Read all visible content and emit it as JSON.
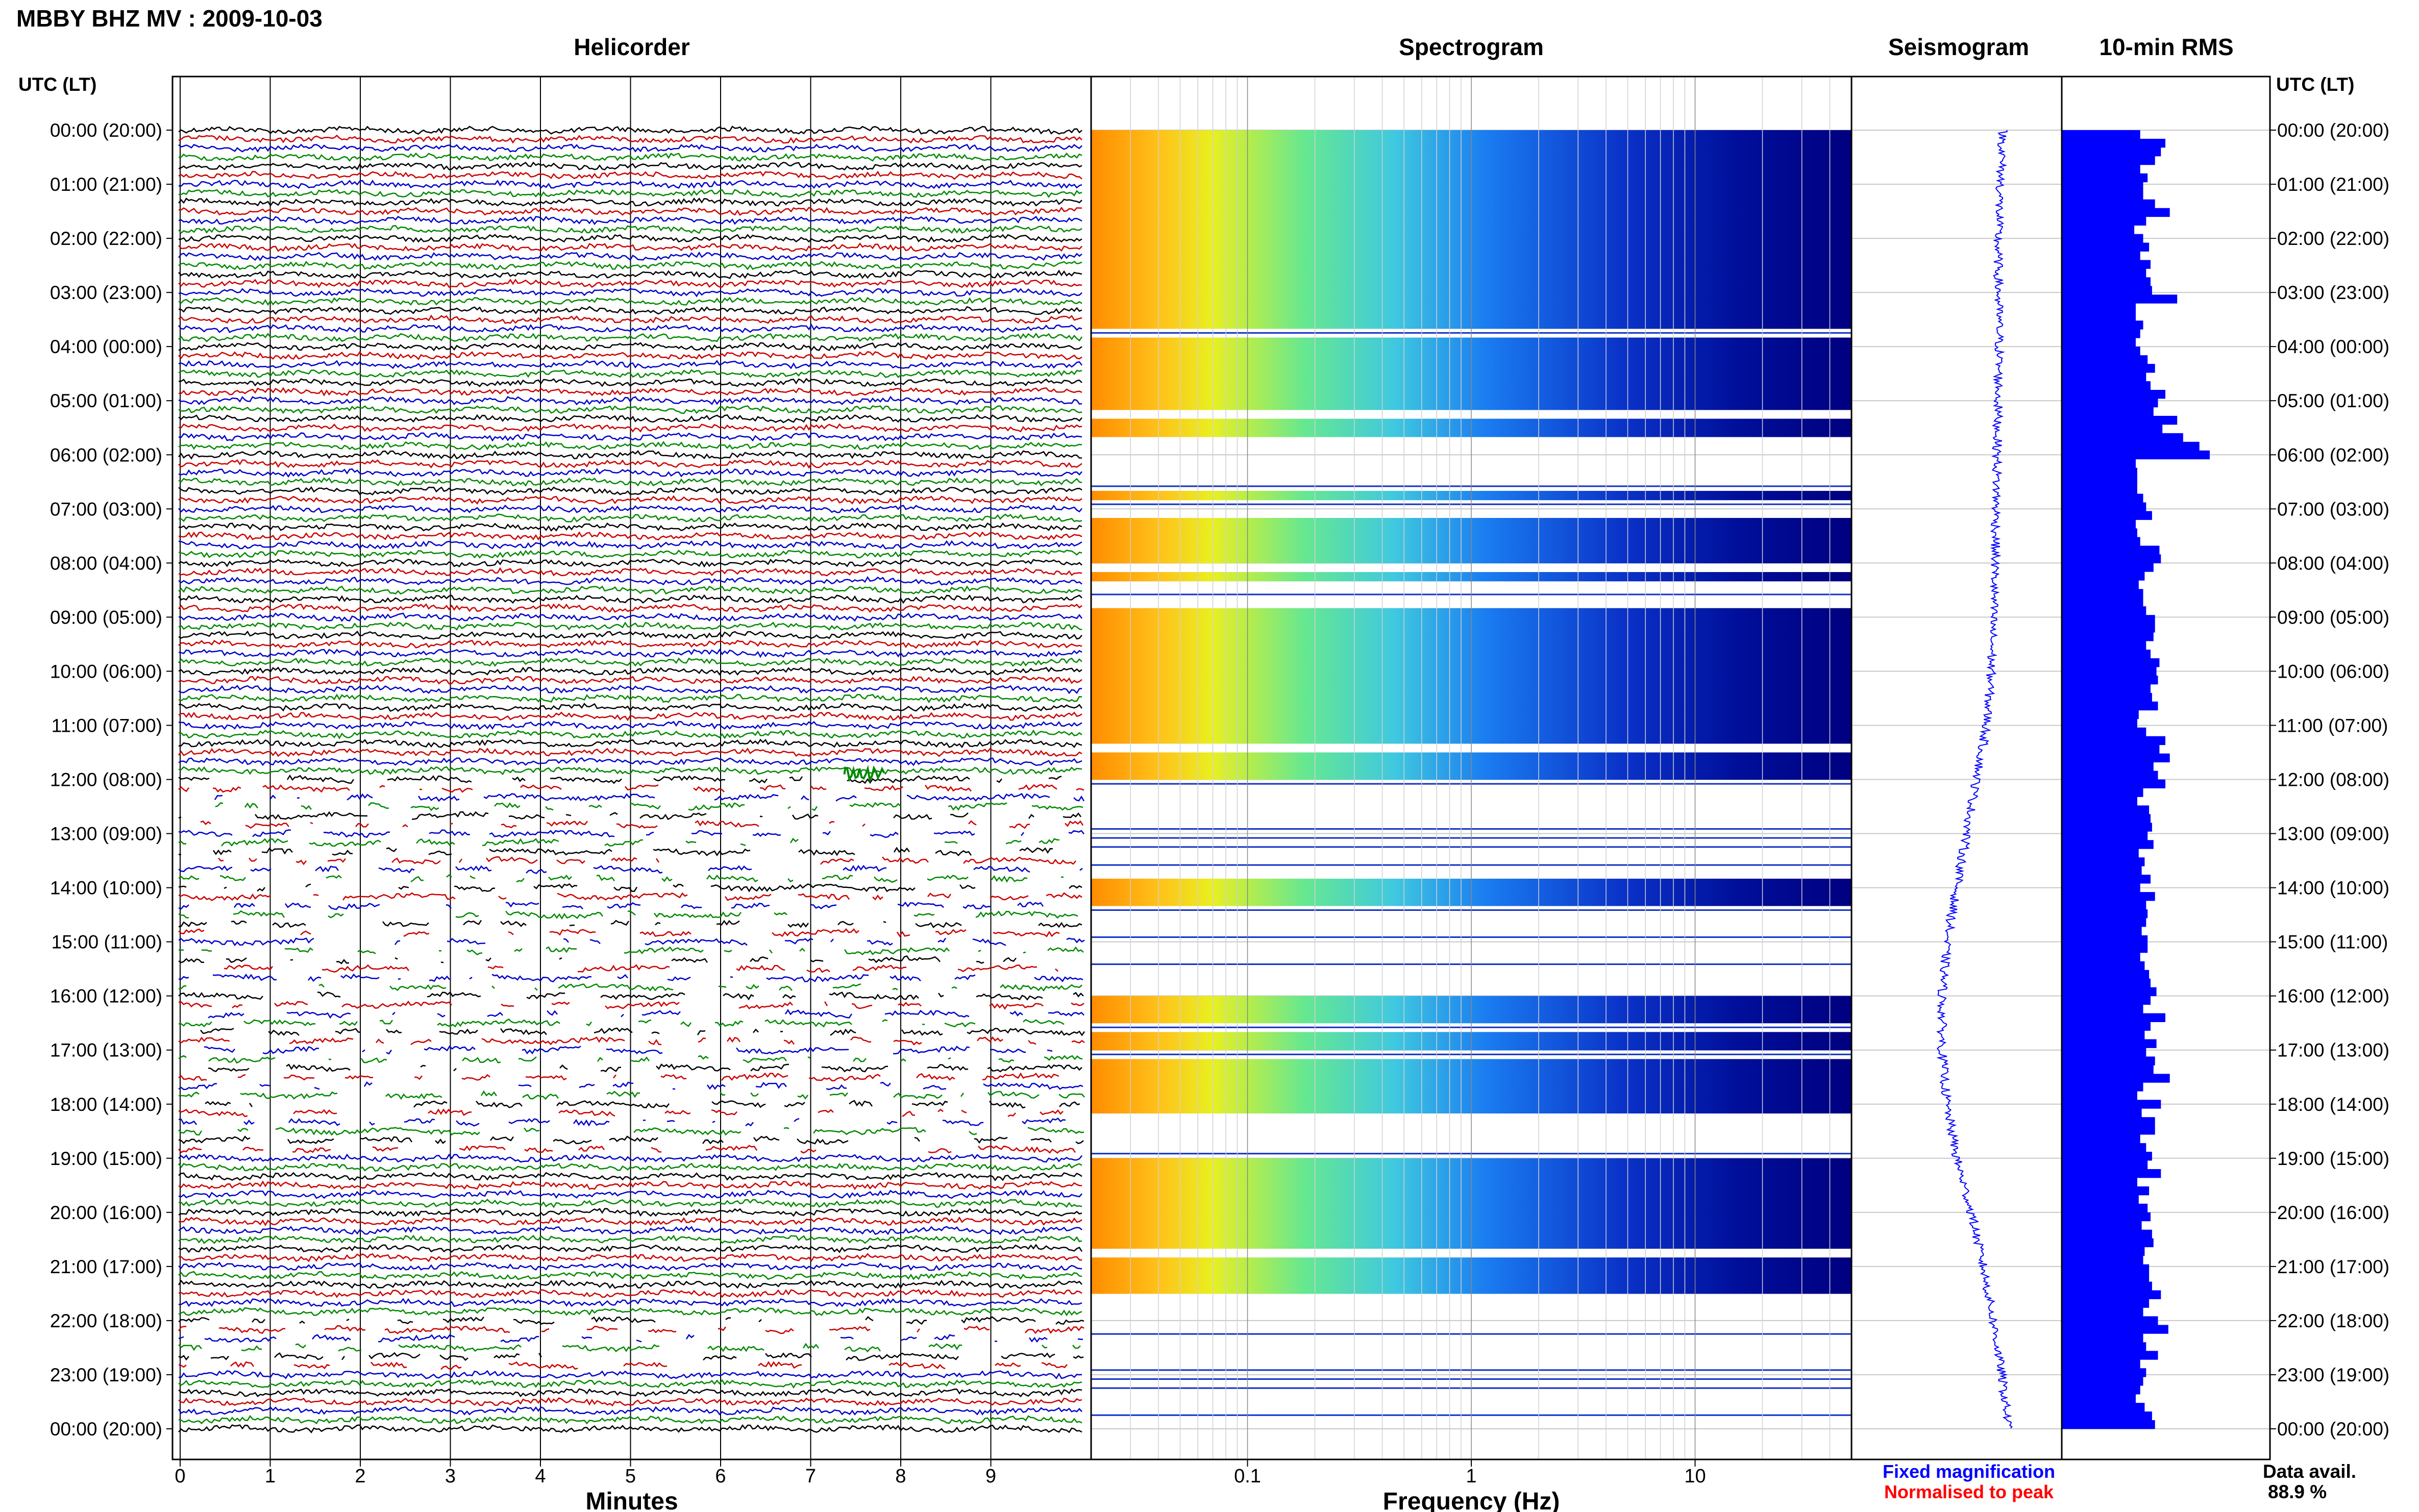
{
  "header": {
    "title": "MBBY BHZ MV : 2009-10-03"
  },
  "panels": {
    "helicorder_title": "Helicorder",
    "spectrogram_title": "Spectrogram",
    "seismogram_title": "Seismogram",
    "rms_title": "10-min RMS"
  },
  "axes": {
    "utc_label_left": "UTC (LT)",
    "utc_label_right": "UTC (LT)",
    "helicorder_xlabel": "Minutes",
    "spectrogram_xlabel": "Frequency (Hz)",
    "time_labels": [
      "00:00 (20:00)",
      "01:00 (21:00)",
      "02:00 (22:00)",
      "03:00 (23:00)",
      "04:00 (00:00)",
      "05:00 (01:00)",
      "06:00 (02:00)",
      "07:00 (03:00)",
      "08:00 (04:00)",
      "09:00 (05:00)",
      "10:00 (06:00)",
      "11:00 (07:00)",
      "12:00 (08:00)",
      "13:00 (09:00)",
      "14:00 (10:00)",
      "15:00 (11:00)",
      "16:00 (12:00)",
      "17:00 (13:00)",
      "18:00 (14:00)",
      "19:00 (15:00)",
      "20:00 (16:00)",
      "21:00 (17:00)",
      "22:00 (18:00)",
      "23:00 (19:00)",
      "00:00 (20:00)"
    ],
    "minute_ticks": [
      "0",
      "1",
      "2",
      "3",
      "4",
      "5",
      "6",
      "7",
      "8",
      "9"
    ],
    "freq_ticks": [
      "0.1",
      "1",
      "10"
    ]
  },
  "legend": {
    "fixed_label": "Fixed magnification",
    "fixed_color": "#0000ff",
    "normalised_label": "Normalised to peak",
    "normalised_color": "#ff0000"
  },
  "data_availability": {
    "label": "Data avail.",
    "value": "88.9 %"
  },
  "colors": {
    "trace_cycle": [
      "#000000",
      "#cc0000",
      "#0000cc",
      "#008800"
    ],
    "spec_low": "#000080",
    "spec_high": "#ff8c00",
    "rms_bar": "#0000ff",
    "seismogram": "#0000ff"
  },
  "chart_data": [
    {
      "type": "line",
      "name": "Helicorder",
      "x_range_minutes": [
        0,
        10
      ],
      "rows_per_hour": 6,
      "hours": 24,
      "gap_hours": [
        12,
        13,
        14,
        15,
        16,
        17,
        18,
        22
      ],
      "event_minute": 7.6,
      "event_hour": 12
    },
    {
      "type": "heatmap",
      "name": "Spectrogram",
      "freq_range_hz": [
        0.02,
        50
      ],
      "scale": "log",
      "xlabel": "Frequency (Hz)",
      "gap_intervals_hours": [
        [
          1.9,
          1.95
        ],
        [
          3.65,
          3.7
        ],
        [
          5.1,
          5.25
        ],
        [
          5.6,
          6.6
        ],
        [
          6.7,
          7.1
        ],
        [
          7.9,
          8.1
        ],
        [
          8.3,
          8.8
        ],
        [
          9.7,
          9.75
        ],
        [
          11.2,
          11.45
        ],
        [
          11.85,
          13.7
        ],
        [
          14.2,
          15.95
        ],
        [
          16.5,
          16.6
        ],
        [
          17.0,
          17.1
        ],
        [
          18.1,
          18.9
        ],
        [
          20.6,
          20.8
        ],
        [
          21.35,
          24.0
        ]
      ]
    },
    {
      "type": "line",
      "name": "Seismogram",
      "x": [
        0,
        2,
        4,
        6,
        8,
        10,
        11,
        12,
        13,
        14,
        15,
        16,
        17,
        18,
        19,
        20,
        21,
        22,
        23,
        24
      ],
      "values": [
        0.7,
        0.62,
        0.64,
        0.61,
        0.58,
        0.52,
        0.45,
        0.3,
        0.15,
        0.0,
        -0.15,
        -0.22,
        -0.22,
        -0.15,
        0.0,
        0.22,
        0.4,
        0.55,
        0.68,
        0.78
      ],
      "unit": "relative offset"
    },
    {
      "type": "bar",
      "name": "10-min RMS",
      "orientation": "horizontal",
      "values": [
        53,
        70,
        67,
        63,
        53,
        58,
        55,
        55,
        63,
        73,
        57,
        49,
        55,
        59,
        53,
        60,
        57,
        60,
        61,
        78,
        50,
        50,
        55,
        53,
        50,
        53,
        58,
        63,
        57,
        60,
        70,
        65,
        62,
        78,
        68,
        82,
        93,
        100,
        50,
        51,
        51,
        51,
        55,
        57,
        61,
        50,
        51,
        53,
        66,
        67,
        62,
        56,
        52,
        55,
        55,
        57,
        63,
        63,
        62,
        57,
        60,
        66,
        64,
        65,
        60,
        61,
        65,
        52,
        51,
        57,
        70,
        66,
        73,
        62,
        65,
        70,
        55,
        51,
        59,
        60,
        61,
        58,
        62,
        52,
        56,
        54,
        60,
        53,
        63,
        57,
        58,
        57,
        54,
        58,
        58,
        53,
        56,
        59,
        60,
        64,
        60,
        55,
        70,
        60,
        56,
        64,
        57,
        63,
        62,
        73,
        55,
        51,
        67,
        54,
        63,
        63,
        53,
        57,
        61,
        58,
        67,
        51,
        59,
        52,
        58,
        60,
        54,
        61,
        62,
        56,
        55,
        59,
        59,
        61,
        67,
        59,
        55,
        65,
        72,
        55,
        57,
        65,
        53,
        57,
        55,
        53,
        50,
        56,
        61,
        63
      ]
    }
  ]
}
